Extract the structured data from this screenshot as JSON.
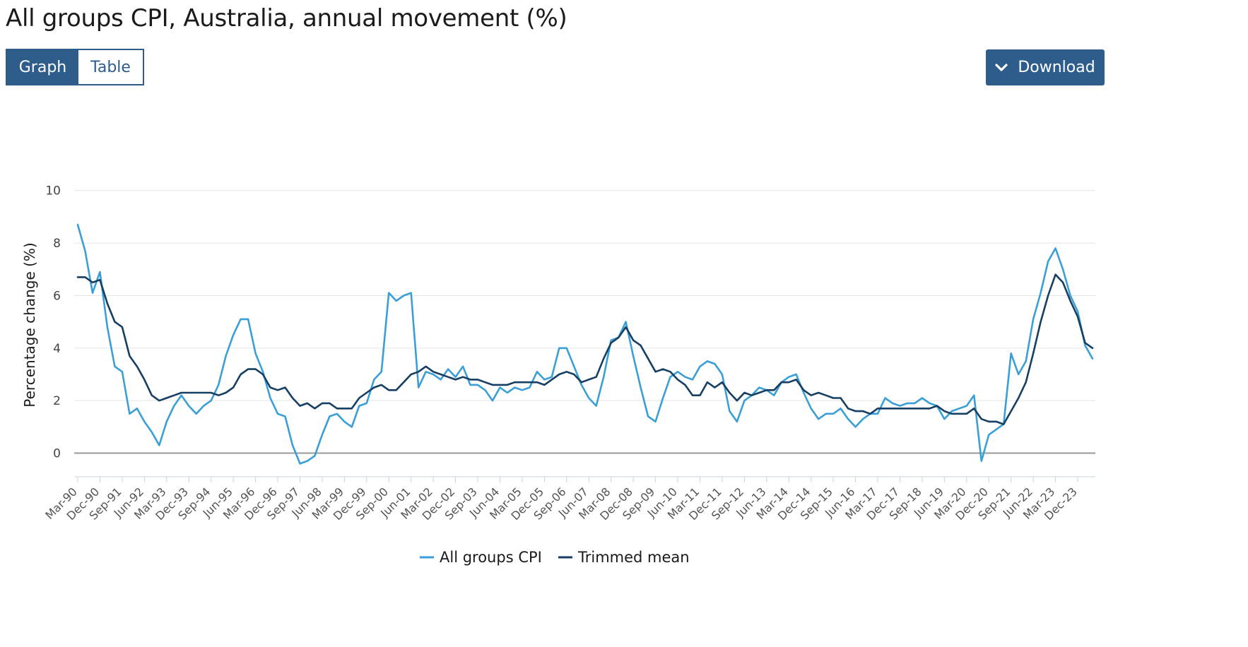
{
  "page": {
    "title": "All groups CPI, Australia, annual movement (%)",
    "graph_label": "Graph",
    "table_label": "Table",
    "download_label": "Download"
  },
  "chart_data": {
    "type": "line",
    "title": "All groups CPI, Australia, annual movement (%)",
    "xlabel": "",
    "ylabel": "Percentage change (%)",
    "ylim": [
      -0.9,
      10.8
    ],
    "yticks": [
      0,
      2,
      4,
      6,
      8,
      10
    ],
    "grid": true,
    "legend_position": "bottom-center",
    "x_tick_labels": [
      "Mar-90",
      "Dec-90",
      "Sep-91",
      "Jun-92",
      "Mar-93",
      "Dec-93",
      "Sep-94",
      "Jun-95",
      "Mar-96",
      "Dec-96",
      "Sep-97",
      "Jun-98",
      "Mar-99",
      "Dec-99",
      "Sep-00",
      "Jun-01",
      "Mar-02",
      "Dec-02",
      "Sep-03",
      "Jun-04",
      "Mar-05",
      "Dec-05",
      "Sep-06",
      "Jun-07",
      "Mar-08",
      "Dec-08",
      "Sep-09",
      "Jun-10",
      "Mar-11",
      "Dec-11",
      "Sep-12",
      "Jun-13",
      "Mar-14",
      "Dec-14",
      "Sep-15",
      "Jun-16",
      "Mar-17",
      "Dec-17",
      "Sep-18",
      "Jun-19",
      "Mar-20",
      "Dec-20",
      "Sep-21",
      "Jun-22",
      "Mar-23",
      "Dec-23"
    ],
    "x_tick_interval_quarters": 3,
    "quarters_count": 138,
    "start_quarter": "Mar-90",
    "series": [
      {
        "name": "All groups CPI",
        "color": "#3a9fd6",
        "values": [
          8.7,
          7.7,
          6.1,
          6.9,
          4.8,
          3.3,
          3.1,
          1.5,
          1.7,
          1.2,
          0.8,
          0.3,
          1.2,
          1.8,
          2.2,
          1.8,
          1.5,
          1.8,
          2.0,
          2.6,
          3.7,
          4.5,
          5.1,
          5.1,
          3.8,
          3.1,
          2.1,
          1.5,
          1.4,
          0.3,
          -0.4,
          -0.3,
          -0.1,
          0.7,
          1.4,
          1.5,
          1.2,
          1.0,
          1.8,
          1.9,
          2.8,
          3.1,
          6.1,
          5.8,
          6.0,
          6.1,
          2.5,
          3.1,
          3.0,
          2.8,
          3.2,
          2.9,
          3.3,
          2.6,
          2.6,
          2.4,
          2.0,
          2.5,
          2.3,
          2.5,
          2.4,
          2.5,
          3.1,
          2.8,
          2.9,
          4.0,
          4.0,
          3.3,
          2.6,
          2.1,
          1.8,
          2.9,
          4.3,
          4.4,
          5.0,
          3.7,
          2.5,
          1.4,
          1.2,
          2.1,
          2.9,
          3.1,
          2.9,
          2.8,
          3.3,
          3.5,
          3.4,
          3.0,
          1.6,
          1.2,
          2.0,
          2.2,
          2.5,
          2.4,
          2.2,
          2.7,
          2.9,
          3.0,
          2.3,
          1.7,
          1.3,
          1.5,
          1.5,
          1.7,
          1.3,
          1.0,
          1.3,
          1.5,
          1.5,
          2.1,
          1.9,
          1.8,
          1.9,
          1.9,
          2.1,
          1.9,
          1.8,
          1.3,
          1.6,
          1.7,
          1.8,
          2.2,
          -0.3,
          0.7,
          0.9,
          1.1,
          3.8,
          3.0,
          3.5,
          5.1,
          6.1,
          7.3,
          7.8,
          7.0,
          6.0,
          5.4,
          4.1,
          3.6
        ]
      },
      {
        "name": "Trimmed mean",
        "color": "#163f63",
        "values": [
          6.7,
          6.7,
          6.5,
          6.6,
          5.7,
          5.0,
          4.8,
          3.7,
          3.3,
          2.8,
          2.2,
          2.0,
          2.1,
          2.2,
          2.3,
          2.3,
          2.3,
          2.3,
          2.3,
          2.2,
          2.3,
          2.5,
          3.0,
          3.2,
          3.2,
          3.0,
          2.5,
          2.4,
          2.5,
          2.1,
          1.8,
          1.9,
          1.7,
          1.9,
          1.9,
          1.7,
          1.7,
          1.7,
          2.1,
          2.3,
          2.5,
          2.6,
          2.4,
          2.4,
          2.7,
          3.0,
          3.1,
          3.3,
          3.1,
          3.0,
          2.9,
          2.8,
          2.9,
          2.8,
          2.8,
          2.7,
          2.6,
          2.6,
          2.6,
          2.7,
          2.7,
          2.7,
          2.7,
          2.6,
          2.8,
          3.0,
          3.1,
          3.0,
          2.7,
          2.8,
          2.9,
          3.6,
          4.2,
          4.4,
          4.8,
          4.3,
          4.1,
          3.6,
          3.1,
          3.2,
          3.1,
          2.8,
          2.6,
          2.2,
          2.2,
          2.7,
          2.5,
          2.7,
          2.3,
          2.0,
          2.3,
          2.2,
          2.3,
          2.4,
          2.4,
          2.7,
          2.7,
          2.8,
          2.4,
          2.2,
          2.3,
          2.2,
          2.1,
          2.1,
          1.7,
          1.6,
          1.6,
          1.5,
          1.7,
          1.7,
          1.7,
          1.7,
          1.7,
          1.7,
          1.7,
          1.7,
          1.8,
          1.6,
          1.5,
          1.5,
          1.5,
          1.7,
          1.3,
          1.2,
          1.2,
          1.1,
          1.6,
          2.1,
          2.7,
          3.8,
          5.0,
          6.0,
          6.8,
          6.5,
          5.8,
          5.2,
          4.2,
          4.0
        ]
      }
    ]
  }
}
